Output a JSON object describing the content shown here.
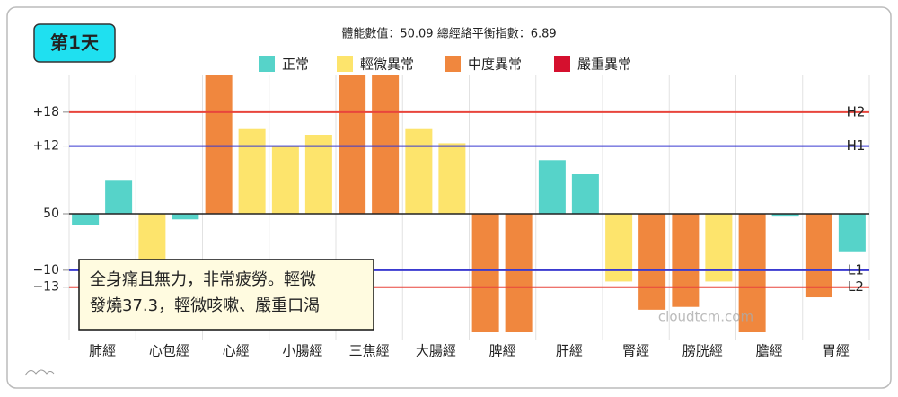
{
  "chart_data": {
    "type": "bar",
    "title": "第1天",
    "subtitle": "體能數值：50.09 總經絡平衡指數：6.89",
    "annotation": [
      "全身痛且無力，非常疲勞。輕微",
      "發燒37.3，輕微咳嗽、嚴重口渴"
    ],
    "watermark": "cloudtcm.com",
    "legend": [
      {
        "name": "正常",
        "color": "#56d3c9"
      },
      {
        "name": "輕微異常",
        "color": "#fde46c"
      },
      {
        "name": "中度異常",
        "color": "#f0873e"
      },
      {
        "name": "嚴重異常",
        "color": "#d5102e"
      }
    ],
    "categories": [
      "肺經",
      "心包經",
      "心經",
      "小腸經",
      "三焦經",
      "大腸經",
      "脾經",
      "肝經",
      "腎經",
      "膀胱經",
      "膽經",
      "胃經"
    ],
    "values": [
      [
        -2,
        6
      ],
      [
        -8,
        -1
      ],
      [
        24.5,
        15
      ],
      [
        12,
        14
      ],
      [
        24.5,
        24.5
      ],
      [
        15,
        12.5
      ],
      [
        -21,
        -21
      ],
      [
        9.5,
        7
      ],
      [
        -12,
        -17
      ],
      [
        -16.5,
        -12
      ],
      [
        -21,
        -0.5
      ],
      [
        -14.8,
        -6.8
      ]
    ],
    "colors": [
      [
        "#56d3c9",
        "#56d3c9"
      ],
      [
        "#fde46c",
        "#56d3c9"
      ],
      [
        "#f0873e",
        "#fde46c"
      ],
      [
        "#fde46c",
        "#fde46c"
      ],
      [
        "#f0873e",
        "#f0873e"
      ],
      [
        "#fde46c",
        "#fde46c"
      ],
      [
        "#f0873e",
        "#f0873e"
      ],
      [
        "#56d3c9",
        "#56d3c9"
      ],
      [
        "#fde46c",
        "#f0873e"
      ],
      [
        "#f0873e",
        "#fde46c"
      ],
      [
        "#f0873e",
        "#56d3c9"
      ],
      [
        "#f0873e",
        "#56d3c9"
      ]
    ],
    "ylim": [
      -21,
      24.5
    ],
    "yticks": [
      {
        "value": 18,
        "label": "+18"
      },
      {
        "value": 12,
        "label": "+12"
      },
      {
        "value": 0,
        "label": "50"
      },
      {
        "value": -10,
        "label": "−10"
      },
      {
        "value": -13,
        "label": "−13"
      }
    ],
    "reference_lines": [
      {
        "value": 18,
        "label": "H2",
        "color": "#e8453c"
      },
      {
        "value": 12,
        "label": "H1",
        "color": "#3a3ad0"
      },
      {
        "value": -10,
        "label": "L1",
        "color": "#3a3ad0"
      },
      {
        "value": -13,
        "label": "L2",
        "color": "#e8453c"
      }
    ]
  }
}
